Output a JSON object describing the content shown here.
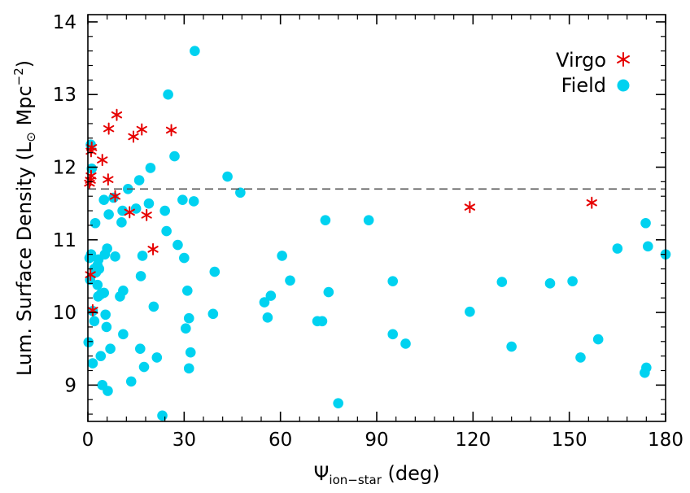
{
  "chart_data": {
    "type": "scatter",
    "xlabel_symbol": "Ψ",
    "xlabel_sub": "ion−star",
    "xlabel_unit": " (deg)",
    "ylabel_main": "Lum. Surface Density (L",
    "ylabel_sun": "⊙",
    "ylabel_unit": " Mpc",
    "ylabel_exp": "−2",
    "ylabel_close": ")",
    "xlim": [
      0,
      180
    ],
    "ylim": [
      8.5,
      14.1
    ],
    "xticks": [
      0,
      30,
      60,
      90,
      120,
      150,
      180
    ],
    "yticks": [
      9,
      10,
      11,
      12,
      13,
      14
    ],
    "xtick_labels": [
      "0",
      "30",
      "60",
      "90",
      "120",
      "150",
      "180"
    ],
    "ytick_labels": [
      "9",
      "10",
      "11",
      "12",
      "13",
      "14"
    ],
    "reference_line_y": 11.7,
    "legend_position": "top-right",
    "colors": {
      "virgo": "#e60000",
      "field": "#00d2f0",
      "reference_line": "#555555"
    },
    "series": [
      {
        "name": "Virgo",
        "marker": "asterisk",
        "points": [
          [
            0.5,
            11.78
          ],
          [
            0.8,
            11.82
          ],
          [
            1.0,
            11.88
          ],
          [
            1.0,
            12.22
          ],
          [
            1.2,
            12.27
          ],
          [
            0.8,
            10.52
          ],
          [
            1.5,
            10.03
          ],
          [
            4.5,
            12.1
          ],
          [
            6.3,
            11.83
          ],
          [
            6.5,
            12.53
          ],
          [
            8.5,
            11.6
          ],
          [
            9.0,
            12.72
          ],
          [
            13.0,
            11.38
          ],
          [
            14.2,
            12.42
          ],
          [
            16.8,
            12.52
          ],
          [
            18.3,
            11.34
          ],
          [
            20.3,
            10.87
          ],
          [
            26.0,
            12.51
          ],
          [
            119.0,
            11.45
          ],
          [
            157.0,
            11.51
          ]
        ]
      },
      {
        "name": "Field",
        "marker": "circle",
        "points": [
          [
            0.2,
            9.59
          ],
          [
            0.5,
            10.75
          ],
          [
            0.7,
            10.45
          ],
          [
            0.9,
            12.31
          ],
          [
            1.0,
            10.8
          ],
          [
            1.2,
            11.98
          ],
          [
            1.5,
            9.3
          ],
          [
            1.5,
            10.02
          ],
          [
            2.0,
            10.6
          ],
          [
            2.0,
            9.88
          ],
          [
            2.3,
            11.23
          ],
          [
            2.5,
            10.55
          ],
          [
            3.0,
            10.65
          ],
          [
            3.0,
            10.38
          ],
          [
            3.2,
            10.22
          ],
          [
            3.3,
            10.73
          ],
          [
            3.5,
            10.6
          ],
          [
            4.0,
            10.25
          ],
          [
            4.0,
            9.4
          ],
          [
            4.5,
            9.0
          ],
          [
            5.0,
            11.55
          ],
          [
            5.0,
            10.27
          ],
          [
            5.3,
            10.8
          ],
          [
            5.5,
            9.97
          ],
          [
            5.8,
            9.8
          ],
          [
            6.0,
            10.88
          ],
          [
            6.2,
            8.92
          ],
          [
            6.5,
            11.35
          ],
          [
            7.0,
            9.5
          ],
          [
            8.0,
            11.58
          ],
          [
            8.5,
            10.77
          ],
          [
            10.0,
            10.22
          ],
          [
            10.5,
            11.24
          ],
          [
            10.8,
            11.4
          ],
          [
            11.0,
            10.3
          ],
          [
            11.0,
            9.7
          ],
          [
            12.5,
            11.7
          ],
          [
            13.5,
            9.05
          ],
          [
            15.0,
            11.43
          ],
          [
            16.0,
            11.82
          ],
          [
            16.3,
            9.5
          ],
          [
            16.5,
            10.5
          ],
          [
            17.0,
            10.78
          ],
          [
            17.5,
            9.25
          ],
          [
            19.0,
            11.5
          ],
          [
            19.5,
            11.99
          ],
          [
            20.5,
            10.08
          ],
          [
            21.5,
            9.38
          ],
          [
            23.2,
            8.58
          ],
          [
            24.0,
            11.4
          ],
          [
            24.5,
            11.12
          ],
          [
            25.0,
            13.0
          ],
          [
            27.0,
            12.15
          ],
          [
            28.0,
            10.93
          ],
          [
            29.5,
            11.55
          ],
          [
            30.0,
            10.75
          ],
          [
            30.5,
            9.78
          ],
          [
            31.0,
            10.3
          ],
          [
            31.5,
            9.23
          ],
          [
            31.5,
            9.92
          ],
          [
            32.0,
            9.45
          ],
          [
            33.0,
            11.53
          ],
          [
            33.3,
            13.6
          ],
          [
            39.0,
            9.98
          ],
          [
            39.5,
            10.56
          ],
          [
            43.5,
            11.87
          ],
          [
            47.5,
            11.65
          ],
          [
            55.0,
            10.14
          ],
          [
            56.0,
            9.93
          ],
          [
            57.0,
            10.23
          ],
          [
            60.5,
            10.78
          ],
          [
            63.0,
            10.44
          ],
          [
            71.5,
            9.88
          ],
          [
            73.0,
            9.88
          ],
          [
            74.0,
            11.27
          ],
          [
            75.0,
            10.28
          ],
          [
            78.0,
            8.75
          ],
          [
            87.5,
            11.27
          ],
          [
            95.0,
            10.43
          ],
          [
            95.0,
            9.7
          ],
          [
            99.0,
            9.57
          ],
          [
            119.0,
            10.01
          ],
          [
            129.0,
            10.42
          ],
          [
            132.0,
            9.53
          ],
          [
            144.0,
            10.4
          ],
          [
            151.0,
            10.43
          ],
          [
            153.5,
            9.38
          ],
          [
            159.0,
            9.63
          ],
          [
            165.0,
            10.88
          ],
          [
            173.5,
            9.17
          ],
          [
            173.8,
            11.23
          ],
          [
            174.0,
            9.24
          ],
          [
            174.5,
            10.91
          ],
          [
            180.0,
            10.8
          ]
        ]
      }
    ]
  }
}
